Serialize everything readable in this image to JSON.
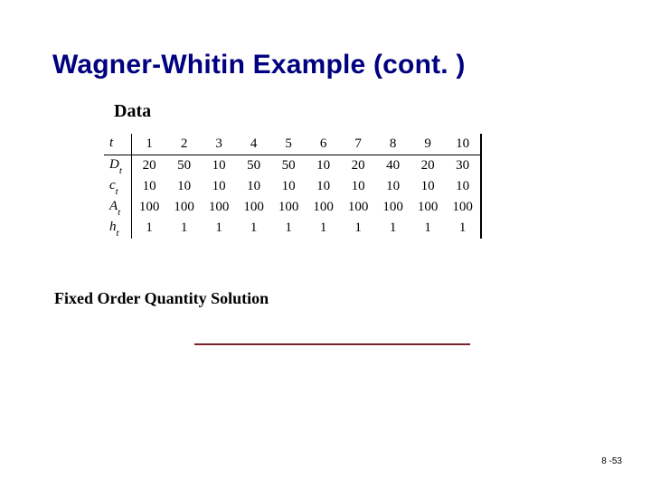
{
  "title": "Wagner-Whitin Example (cont. )",
  "data_label": "Data",
  "subheading": "Fixed Order Quantity Solution",
  "page_number": "8 -53",
  "colors": {
    "title_color": "#000080",
    "rule_color": "#79222a",
    "table_border": "#000000",
    "background": "#ffffff",
    "text": "#000000"
  },
  "table": {
    "row_labels": [
      {
        "sym": "t",
        "sub": ""
      },
      {
        "sym": "D",
        "sub": "t"
      },
      {
        "sym": "c",
        "sub": "t"
      },
      {
        "sym": "A",
        "sub": "t"
      },
      {
        "sym": "h",
        "sub": "t"
      }
    ],
    "columns": [
      "1",
      "2",
      "3",
      "4",
      "5",
      "6",
      "7",
      "8",
      "9",
      "10"
    ],
    "rows": [
      [
        "1",
        "2",
        "3",
        "4",
        "5",
        "6",
        "7",
        "8",
        "9",
        "10"
      ],
      [
        "20",
        "50",
        "10",
        "50",
        "50",
        "10",
        "20",
        "40",
        "20",
        "30"
      ],
      [
        "10",
        "10",
        "10",
        "10",
        "10",
        "10",
        "10",
        "10",
        "10",
        "10"
      ],
      [
        "100",
        "100",
        "100",
        "100",
        "100",
        "100",
        "100",
        "100",
        "100",
        "100"
      ],
      [
        "1",
        "1",
        "1",
        "1",
        "1",
        "1",
        "1",
        "1",
        "1",
        "1"
      ]
    ],
    "fontsize": 15,
    "header_border_bottom": true,
    "right_double_rule": true
  }
}
